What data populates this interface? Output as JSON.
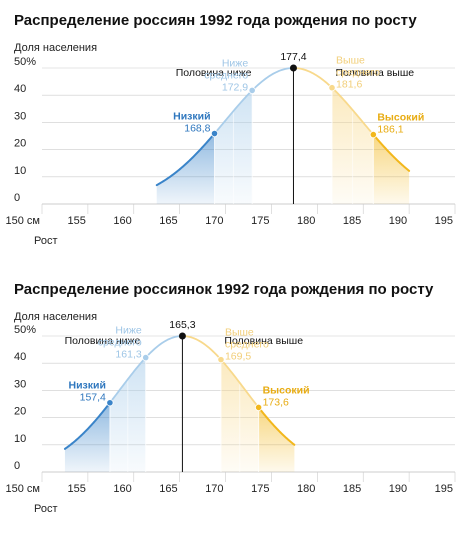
{
  "colors": {
    "low": "#3a84c9",
    "below_avg": "#a9cdea",
    "above_avg": "#f8d98c",
    "high": "#f2b71c",
    "peak": "#111111",
    "grid": "#cccccc",
    "text": "#222222"
  },
  "chart_data": [
    {
      "type": "area",
      "title": "Распределение россиян 1992 года рождения по росту",
      "ylabel": "Доля населения",
      "xlabel": "Рост",
      "x_ticks": [
        "150 см",
        "155",
        "160",
        "165",
        "170",
        "175",
        "180",
        "185",
        "190",
        "195"
      ],
      "y_ticks": [
        "0",
        "10",
        "20",
        "30",
        "40",
        "50%"
      ],
      "xlim": [
        150,
        195
      ],
      "ylim": [
        0,
        50
      ],
      "curve": {
        "mean": 177.4,
        "sd": 7.5,
        "x_range": [
          162.5,
          190
        ],
        "peak_value": 50
      },
      "markers": [
        {
          "name": "Низкий",
          "value": 168.8,
          "value_label": "168,8",
          "color": "low"
        },
        {
          "name": "Ниже среднего",
          "name_lines": [
            "Ниже",
            "среднего"
          ],
          "value": 172.9,
          "value_label": "172,9",
          "color": "below_avg"
        },
        {
          "name": "Выше среднего",
          "name_lines": [
            "Выше",
            "среднего"
          ],
          "value": 181.6,
          "value_label": "181,6",
          "color": "above_avg"
        },
        {
          "name": "Высокий",
          "value": 186.1,
          "value_label": "186,1",
          "color": "high"
        }
      ],
      "median": {
        "value": 177.4,
        "label": "177,4"
      },
      "half_below_label": "Половина ниже",
      "half_above_label": "Половина выше"
    },
    {
      "type": "area",
      "title": "Распределение россиянок 1992 года рождения по росту",
      "ylabel": "Доля населения",
      "xlabel": "Рост",
      "x_ticks": [
        "150 см",
        "155",
        "160",
        "165",
        "170",
        "175",
        "180",
        "185",
        "190",
        "195"
      ],
      "y_ticks": [
        "0",
        "10",
        "20",
        "30",
        "40",
        "50%"
      ],
      "xlim": [
        150,
        195
      ],
      "ylim": [
        0,
        50
      ],
      "curve": {
        "mean": 165.3,
        "sd": 6.8,
        "x_range": [
          152.5,
          177.5
        ],
        "peak_value": 50
      },
      "markers": [
        {
          "name": "Низкий",
          "value": 157.4,
          "value_label": "157,4",
          "color": "low"
        },
        {
          "name": "Ниже среднего",
          "name_lines": [
            "Ниже",
            "среднего"
          ],
          "value": 161.3,
          "value_label": "161,3",
          "color": "below_avg"
        },
        {
          "name": "Выше среднего",
          "name_lines": [
            "Выше",
            "среднего"
          ],
          "value": 169.5,
          "value_label": "169,5",
          "color": "above_avg"
        },
        {
          "name": "Высокий",
          "value": 173.6,
          "value_label": "173,6",
          "color": "high"
        }
      ],
      "median": {
        "value": 165.3,
        "label": "165,3"
      },
      "half_below_label": "Половина ниже",
      "half_above_label": "Половина выше"
    }
  ]
}
